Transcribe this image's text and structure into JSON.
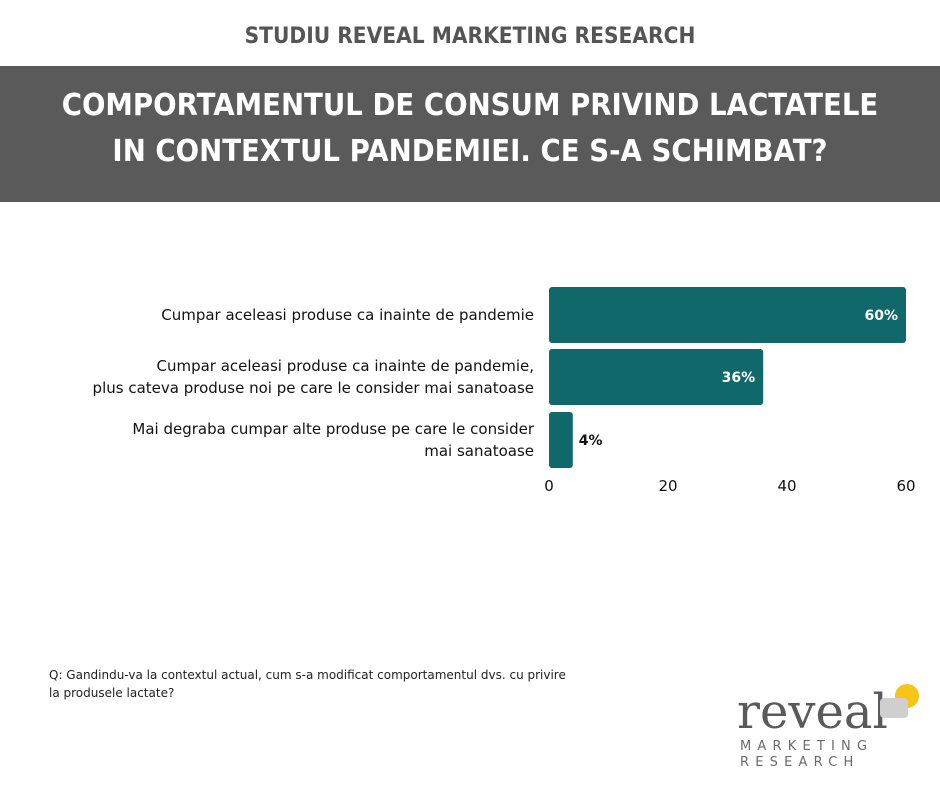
{
  "header": {
    "study": "STUDIU REVEAL MARKETING RESEARCH",
    "title_line1": "COMPORTAMENTUL DE CONSUM PRIVIND LACTATELE",
    "title_line2": "IN CONTEXTUL PANDEMIEI. CE S-A SCHIMBAT?"
  },
  "chart_data": {
    "type": "bar",
    "orientation": "horizontal",
    "categories": [
      [
        "Cumpar aceleasi produse ca inainte de pandemie"
      ],
      [
        "Cumpar aceleasi produse ca inainte de pandemie,",
        "plus cateva produse noi pe care le consider mai sanatoase"
      ],
      [
        "Mai degraba cumpar alte produse pe care le consider",
        "mai sanatoase"
      ]
    ],
    "values": [
      60,
      36,
      4
    ],
    "value_labels": [
      "60%",
      "36%",
      "4%"
    ],
    "xlim": [
      0,
      60
    ],
    "xticks": [
      0,
      20,
      40,
      60
    ],
    "bar_color": "#11686a",
    "grid": false,
    "legend": "none"
  },
  "footer": {
    "question": "Q: Gandindu-va la contextul actual, cum s-a modificat comportamentul dvs. cu privire la produsele lactate?"
  },
  "logo": {
    "word": "reveal",
    "line1": "MARKETING",
    "line2": "RESEARCH",
    "accent_color": "#f5c518",
    "mark_color": "#cfcfcf"
  }
}
